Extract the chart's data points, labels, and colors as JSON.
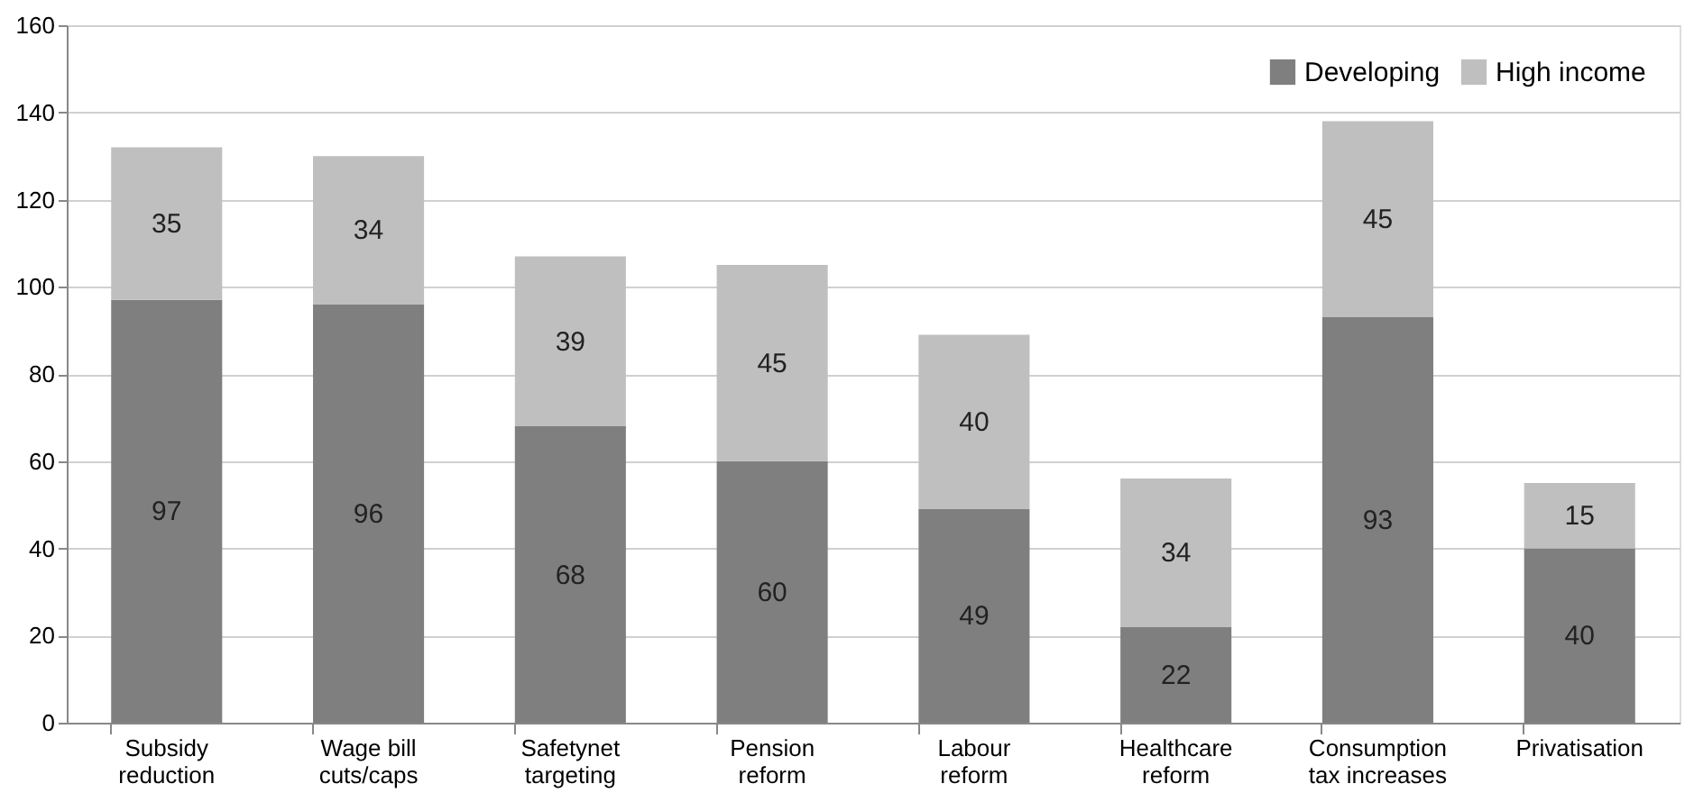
{
  "chart_data": {
    "type": "bar",
    "stacked": true,
    "categories": [
      "Subsidy\nreduction",
      "Wage bill\ncuts/caps",
      "Safetynet\ntargeting",
      "Pension\nreform",
      "Labour\nreform",
      "Healthcare\nreform",
      "Consumption\ntax increases",
      "Privatisation"
    ],
    "series": [
      {
        "name": "Developing",
        "color": "#7f7f7f",
        "values": [
          97,
          96,
          68,
          60,
          49,
          22,
          93,
          40
        ]
      },
      {
        "name": "High income",
        "color": "#bfbfbf",
        "values": [
          35,
          34,
          39,
          45,
          40,
          34,
          45,
          15
        ]
      }
    ],
    "ylim": [
      0,
      160
    ],
    "yticks": [
      0,
      20,
      40,
      60,
      80,
      100,
      120,
      140,
      160
    ],
    "grid": "y",
    "legend": "top right",
    "data_labels": true
  }
}
